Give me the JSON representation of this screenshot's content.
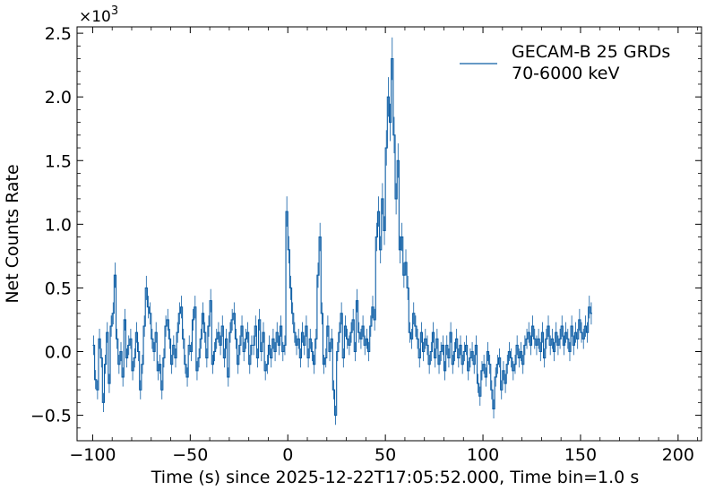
{
  "chart_data": {
    "type": "line",
    "xlabel": "Time (s) since 2025-12-22T17:05:52.000, Time bin=1.0 s",
    "ylabel": "Net Counts Rate",
    "y_scale_multiplier": "×10",
    "y_scale_exponent": "3",
    "xlim": [
      -108,
      212
    ],
    "ylim": [
      -0.7,
      2.55
    ],
    "x_ticks": [
      -100,
      -50,
      0,
      50,
      100,
      150,
      200
    ],
    "x_tick_labels": [
      "−100",
      "−50",
      "0",
      "50",
      "100",
      "150",
      "200"
    ],
    "y_ticks": [
      -0.5,
      0.0,
      0.5,
      1.0,
      1.5,
      2.0,
      2.5
    ],
    "y_tick_labels": [
      "−0.5",
      "0.0",
      "0.5",
      "1.0",
      "1.5",
      "2.0",
      "2.5"
    ],
    "grid": false,
    "legend_position": "top-right",
    "series": [
      {
        "name": "GECAM-B 25 GRDs\n70-6000 keV",
        "name_lines": [
          "GECAM-B 25 GRDs",
          "70-6000 keV"
        ],
        "color": "#0c5da5",
        "x_start": -100,
        "bin_width": 1.0,
        "values": [
          0.05,
          -0.22,
          -0.3,
          0.1,
          -0.05,
          -0.4,
          -0.1,
          0.15,
          -0.25,
          0.2,
          0.3,
          0.6,
          0.1,
          -0.1,
          0.0,
          -0.2,
          0.25,
          -0.05,
          0.05,
          0.1,
          -0.15,
          -0.05,
          0.15,
          0.0,
          -0.3,
          -0.1,
          0.2,
          0.5,
          0.35,
          0.3,
          0.1,
          0.0,
          0.15,
          -0.15,
          -0.1,
          -0.3,
          -0.05,
          0.2,
          0.25,
          0.1,
          -0.1,
          0.05,
          -0.05,
          0.15,
          0.3,
          0.35,
          0.1,
          -0.1,
          -0.2,
          0.05,
          0.0,
          0.25,
          0.35,
          -0.15,
          -0.05,
          0.1,
          0.3,
          0.15,
          -0.05,
          0.2,
          0.4,
          -0.1,
          0.0,
          0.1,
          0.15,
          0.05,
          0.2,
          -0.05,
          0.1,
          -0.2,
          0.15,
          0.25,
          0.3,
          0.1,
          -0.1,
          0.05,
          0.2,
          0.0,
          0.1,
          0.15,
          -0.1,
          0.05,
          0.05,
          0.2,
          -0.05,
          0.25,
          0.0,
          0.15,
          -0.15,
          -0.1,
          0.05,
          -0.05,
          0.1,
          0.0,
          0.15,
          0.05,
          0.2,
          0.0,
          0.05,
          1.1,
          0.8,
          0.5,
          0.3,
          0.15,
          0.05,
          0.1,
          -0.05,
          0.15,
          0.05,
          0.2,
          -0.05,
          0.1,
          0.0,
          -0.1,
          0.1,
          0.6,
          0.9,
          0.3,
          -0.1,
          -0.05,
          0.2,
          0.0,
          0.1,
          -0.3,
          -0.5,
          0.0,
          0.15,
          0.3,
          -0.05,
          0.2,
          0.1,
          0.05,
          0.15,
          0.25,
          0.0,
          0.4,
          0.15,
          0.1,
          0.2,
          0.05,
          0.1,
          0.0,
          0.2,
          0.35,
          0.25,
          0.9,
          1.1,
          0.8,
          1.2,
          0.95,
          1.6,
          2.0,
          1.8,
          2.3,
          1.7,
          1.2,
          1.5,
          0.8,
          0.9,
          0.6,
          0.7,
          0.5,
          0.15,
          0.1,
          0.3,
          0.2,
          0.1,
          -0.05,
          0.15,
          0.0,
          0.1,
          0.05,
          -0.1,
          0.0,
          0.15,
          -0.05,
          0.1,
          -0.1,
          0.0,
          0.05,
          -0.15,
          0.05,
          -0.05,
          0.15,
          -0.1,
          0.0,
          0.1,
          -0.05,
          0.05,
          -0.1,
          0.0,
          0.05,
          -0.15,
          -0.05,
          0.0,
          -0.1,
          0.05,
          -0.25,
          -0.35,
          -0.15,
          -0.1,
          -0.2,
          0.0,
          -0.1,
          -0.3,
          -0.45,
          -0.2,
          -0.1,
          -0.05,
          -0.3,
          -0.15,
          -0.25,
          -0.1,
          0.0,
          -0.05,
          -0.15,
          -0.1,
          0.05,
          -0.05,
          0.0,
          -0.1,
          0.05,
          0.1,
          0.15,
          0.05,
          0.2,
          0.1,
          0.05,
          0.1,
          0.0,
          0.15,
          -0.05,
          0.1,
          0.2,
          0.05,
          0.1,
          0.0,
          0.15,
          0.05,
          0.1,
          0.2,
          0.05,
          0.15,
          0.1,
          0.0,
          0.2,
          0.05,
          0.15,
          0.1,
          0.25,
          0.15,
          0.1,
          0.2,
          0.15,
          0.35,
          0.3
        ]
      }
    ]
  }
}
